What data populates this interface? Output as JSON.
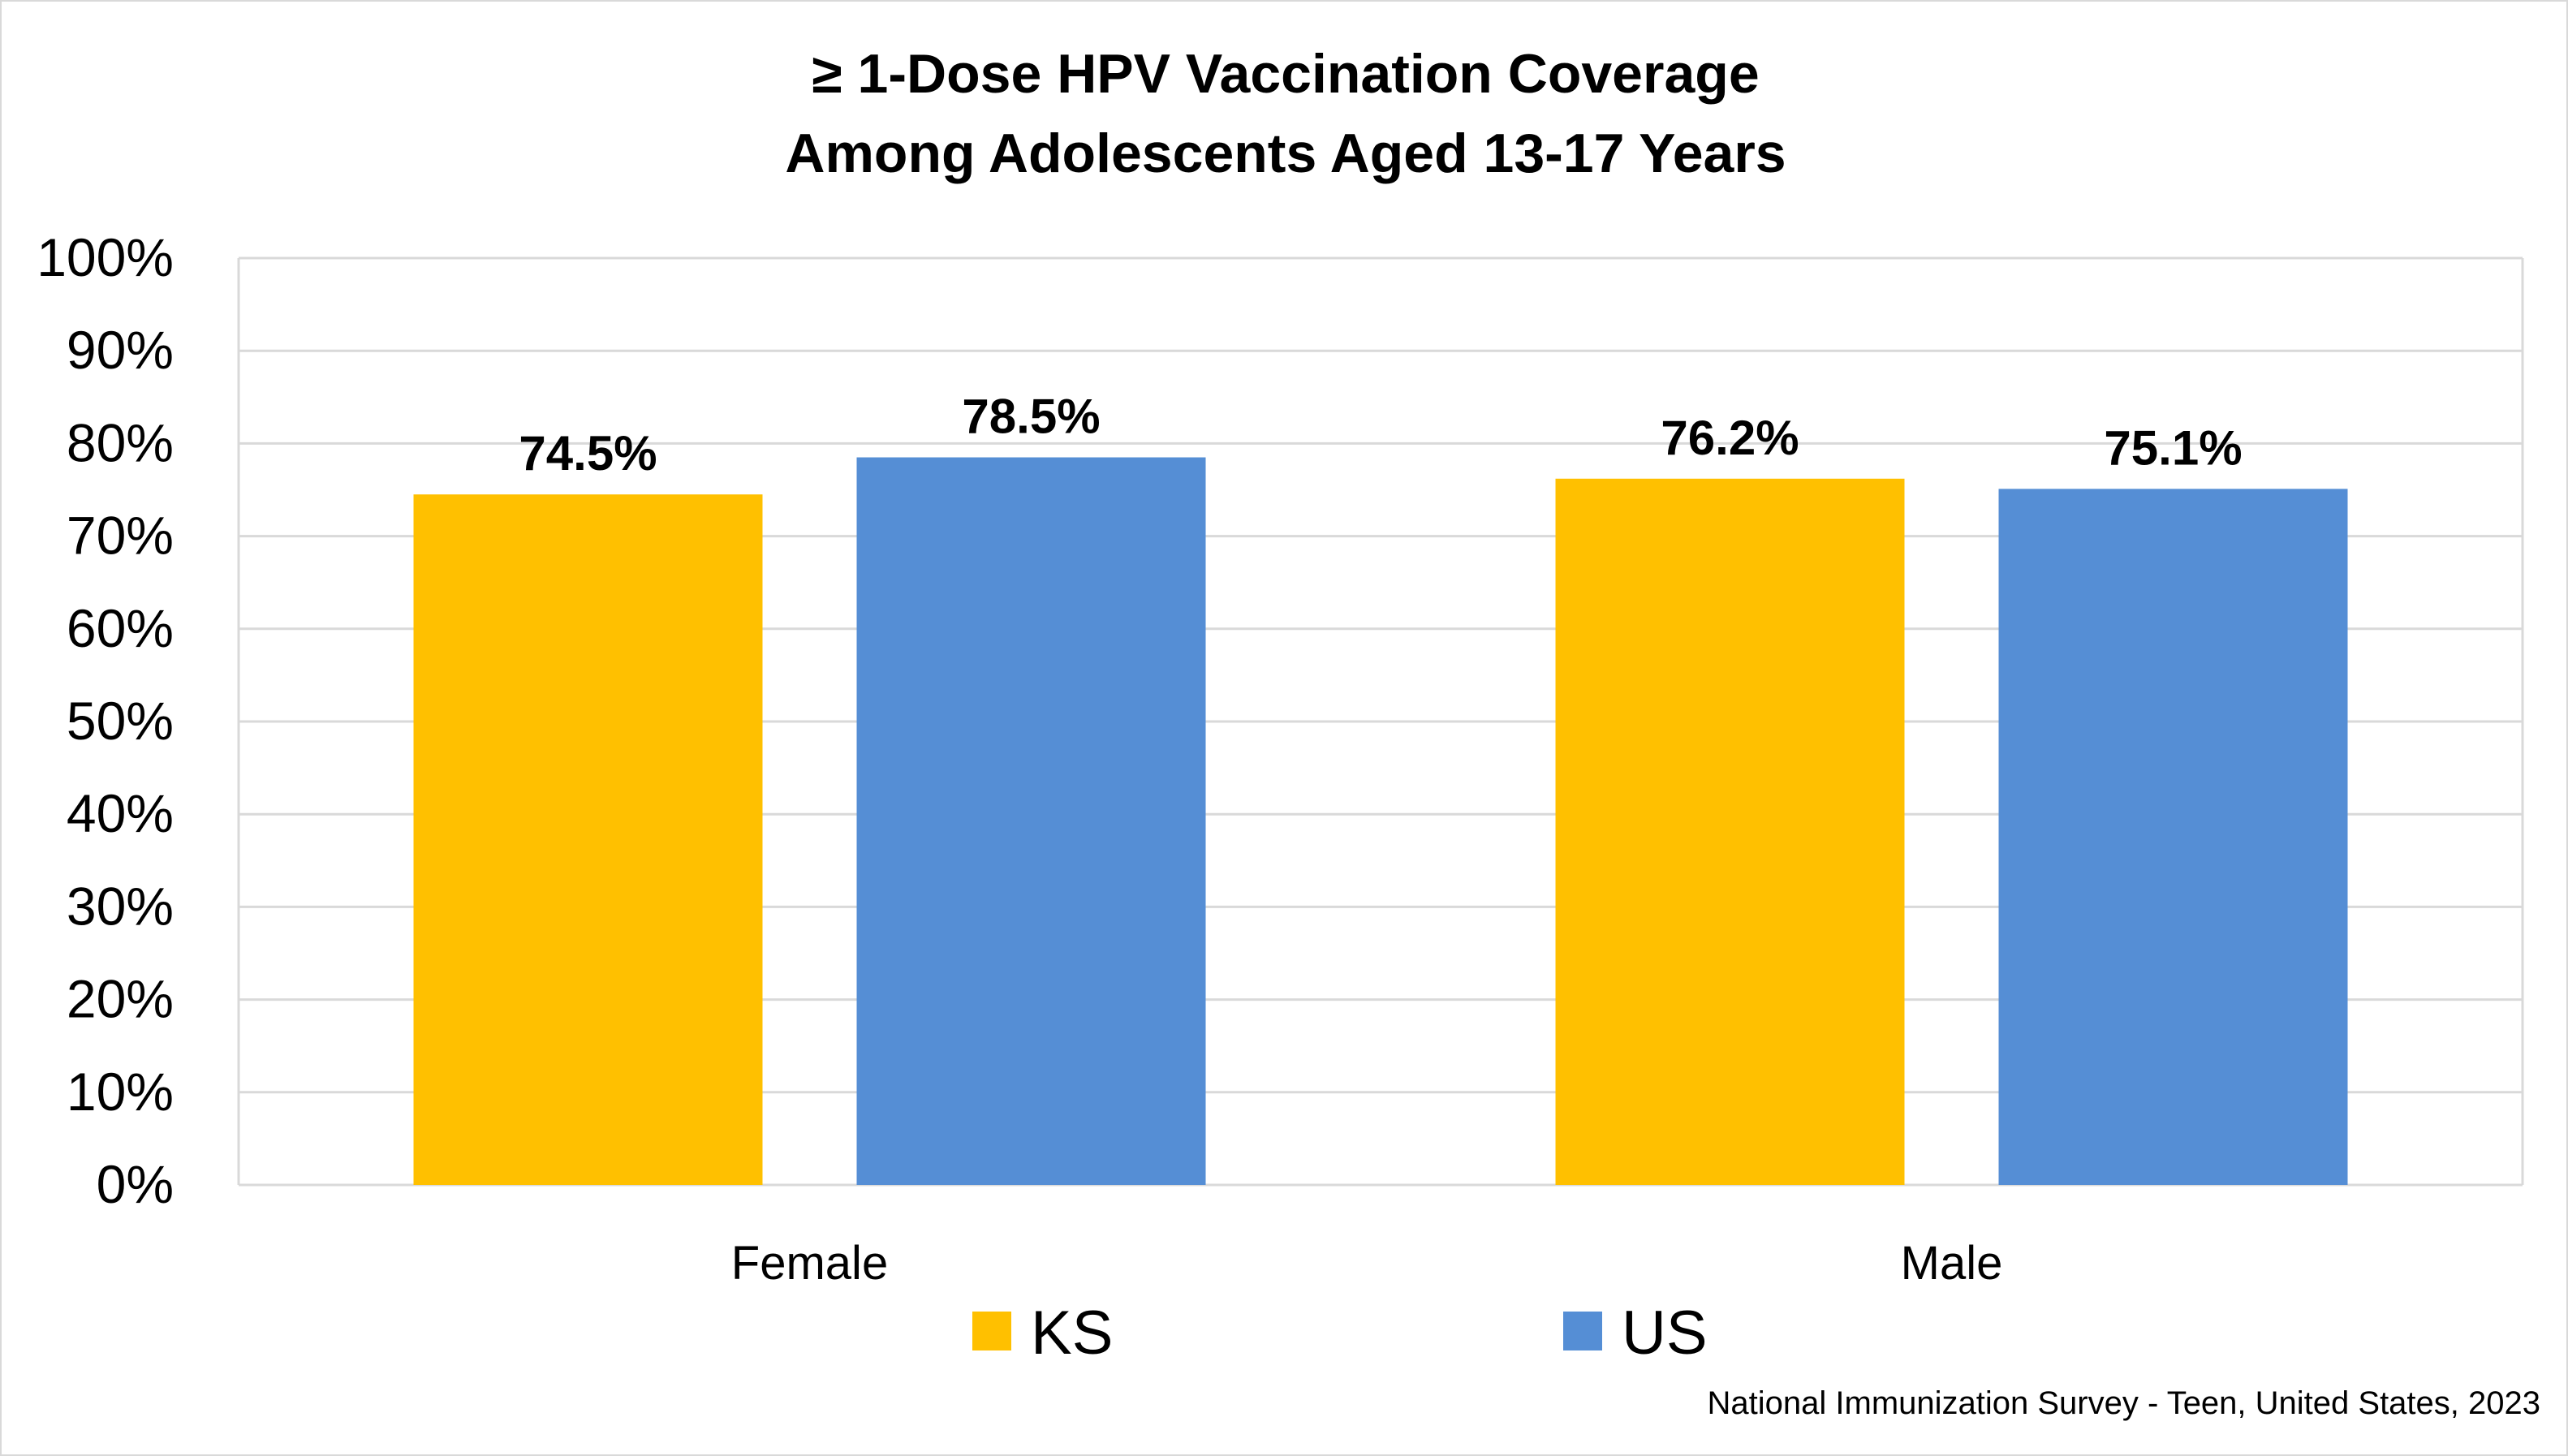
{
  "chart_data": {
    "type": "bar",
    "title_lines": [
      "≥ 1-Dose HPV Vaccination Coverage",
      "Among Adolescents Aged 13-17 Years"
    ],
    "categories": [
      "Female",
      "Male"
    ],
    "series": [
      {
        "name": "KS",
        "color": "#FFC000",
        "values": [
          74.5,
          76.2
        ],
        "labels": [
          "74.5%",
          "76.2%"
        ]
      },
      {
        "name": "US",
        "color": "#558ED5",
        "values": [
          78.5,
          75.1
        ],
        "labels": [
          "78.5%",
          "75.1%"
        ]
      }
    ],
    "ylim": [
      0,
      100
    ],
    "yticks": [
      0,
      10,
      20,
      30,
      40,
      50,
      60,
      70,
      80,
      90,
      100
    ],
    "ytick_labels": [
      "0%",
      "10%",
      "20%",
      "30%",
      "40%",
      "50%",
      "60%",
      "70%",
      "80%",
      "90%",
      "100%"
    ],
    "grid": true,
    "legend_position": "bottom",
    "source_note": "National Immunization Survey - Teen, United States, 2023"
  },
  "colors": {
    "gridline": "#d9d9d9",
    "plot_border": "#d9d9d9"
  }
}
